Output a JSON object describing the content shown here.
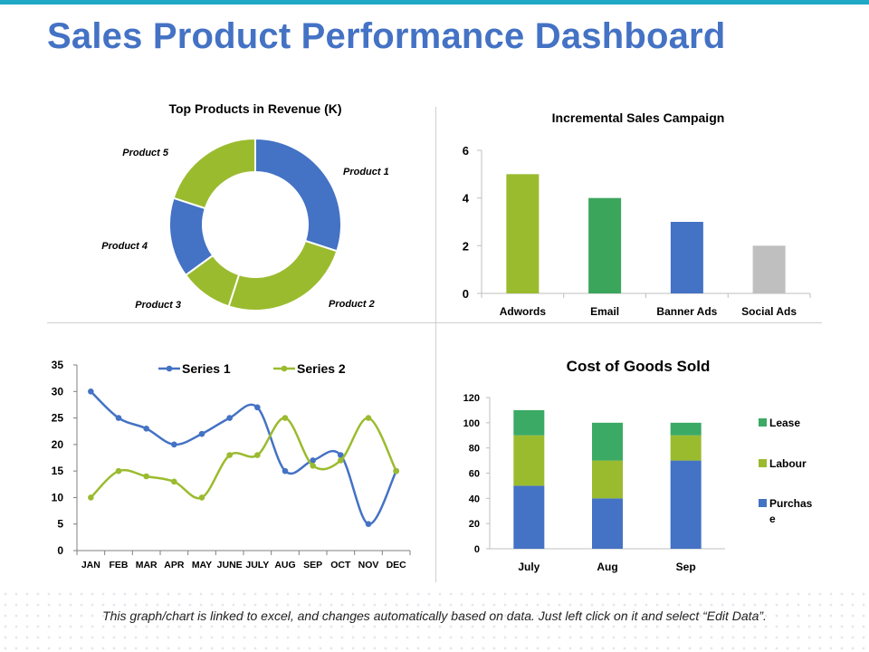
{
  "page": {
    "title": "Sales Product Performance Dashboard",
    "footer_note": "This graph/chart is linked to excel, and changes automatically based on data. Just left click on it and select “Edit Data”.",
    "accent": "#1FA9C4",
    "title_color": "#4472C4"
  },
  "chart_data": [
    {
      "id": "donut",
      "type": "pie",
      "subtype": "donut",
      "title": "Top Products in Revenue (K)",
      "labels": [
        "Product 1",
        "Product 2",
        "Product 3",
        "Product 4",
        "Product 5"
      ],
      "values": [
        30,
        25,
        10,
        15,
        20
      ],
      "colors": [
        "#4472C4",
        "#9BBB2F",
        "#9BBB2F",
        "#4472C4",
        "#9BBB2F"
      ]
    },
    {
      "id": "campaign",
      "type": "bar",
      "title": "Incremental Sales Campaign",
      "categories": [
        "Adwords",
        "Email",
        "Banner Ads",
        "Social Ads"
      ],
      "values": [
        5,
        4,
        3,
        2
      ],
      "colors": [
        "#9BBB2F",
        "#3BA55C",
        "#4472C4",
        "#BFBFBF"
      ],
      "ylim": [
        0,
        6
      ],
      "yticks": [
        0,
        2,
        4,
        6
      ]
    },
    {
      "id": "monthly",
      "type": "line",
      "title": "",
      "categories": [
        "JAN",
        "FEB",
        "MAR",
        "APR",
        "MAY",
        "JUNE",
        "JULY",
        "AUG",
        "SEP",
        "OCT",
        "NOV",
        "DEC"
      ],
      "series": [
        {
          "name": "Series 1",
          "values": [
            30,
            25,
            23,
            20,
            22,
            25,
            27,
            15,
            17,
            18,
            5,
            15
          ],
          "color": "#4472C4"
        },
        {
          "name": "Series 2",
          "values": [
            10,
            15,
            14,
            13,
            10,
            18,
            18,
            25,
            16,
            17,
            25,
            15
          ],
          "color": "#9BBB2F"
        }
      ],
      "ylim": [
        0,
        35
      ],
      "yticks": [
        0,
        5,
        10,
        15,
        20,
        25,
        30,
        35
      ],
      "legend": "top-center"
    },
    {
      "id": "cogs",
      "type": "bar",
      "subtype": "stacked",
      "title": "Cost of Goods Sold",
      "categories": [
        "July",
        "Aug",
        "Sep"
      ],
      "series": [
        {
          "name": "Purchase",
          "legend_label": "Purchas\ne",
          "values": [
            50,
            40,
            70
          ],
          "color": "#4472C4"
        },
        {
          "name": "Labour",
          "legend_label": "Labour",
          "values": [
            40,
            30,
            20
          ],
          "color": "#9BBB2F"
        },
        {
          "name": "Lease",
          "legend_label": "Lease",
          "values": [
            20,
            30,
            10
          ],
          "color": "#3BAA64"
        }
      ],
      "ylim": [
        0,
        120
      ],
      "yticks": [
        0,
        20,
        40,
        60,
        80,
        100,
        120
      ],
      "legend": "right"
    }
  ]
}
